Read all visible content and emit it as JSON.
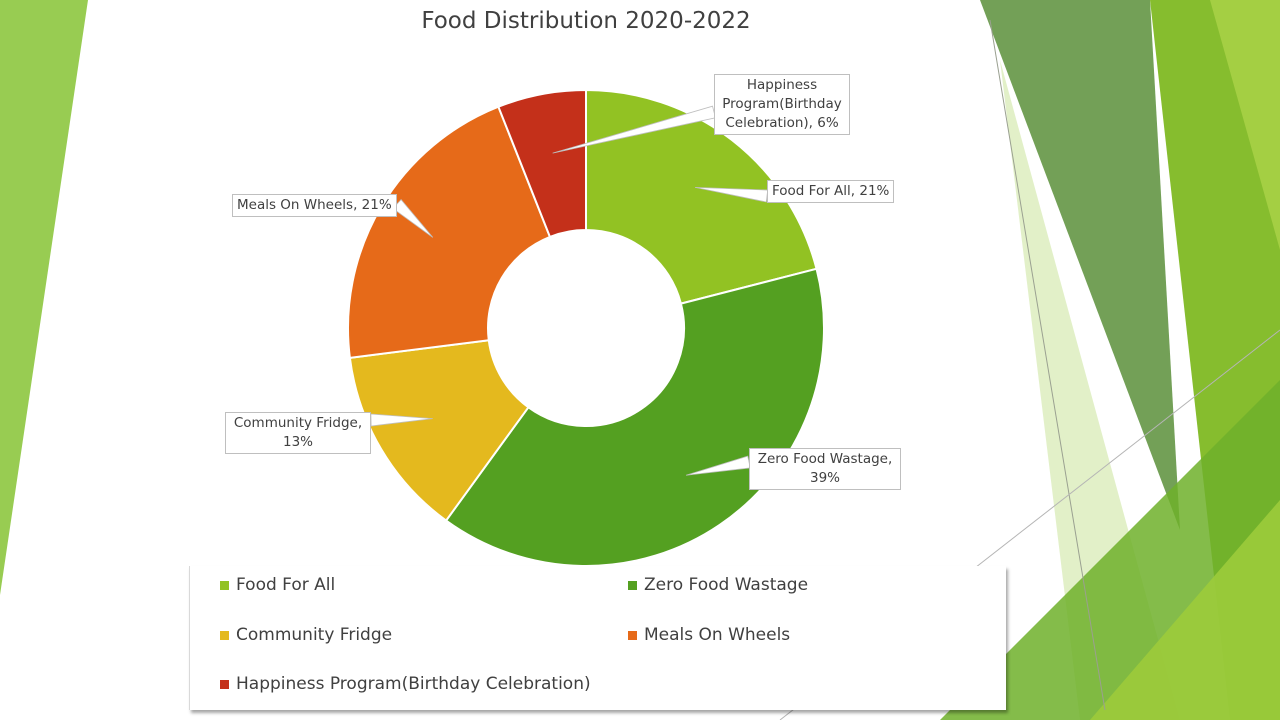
{
  "chart_data": {
    "type": "pie",
    "title": "Food Distribution 2020-2022",
    "categories": [
      "Food For All",
      "Zero Food Wastage",
      "Community Fridge",
      "Meals On Wheels",
      "Happiness Program(Birthday Celebration)"
    ],
    "values": [
      21,
      39,
      13,
      21,
      6
    ],
    "colors": [
      "#92c223",
      "#54a021",
      "#e4b91e",
      "#e66a19",
      "#c4301a"
    ],
    "data_labels": [
      "Food For All, 21%",
      "Zero Food Wastage, 39%",
      "Community Fridge, 13%",
      "Meals On Wheels, 21%",
      "Happiness Program(Birthday Celebration), 6%"
    ],
    "legend_position": "bottom"
  },
  "callouts": {
    "food_for_all": [
      "Food For All, 21%"
    ],
    "zero_food_wastage": [
      "Zero Food Wastage,",
      "39%"
    ],
    "community_fridge": [
      "Community Fridge,",
      "13%"
    ],
    "meals_on_wheels": [
      "Meals On Wheels, 21%"
    ],
    "happiness": [
      "Happiness",
      "Program(Birthday",
      "Celebration), 6%"
    ]
  }
}
